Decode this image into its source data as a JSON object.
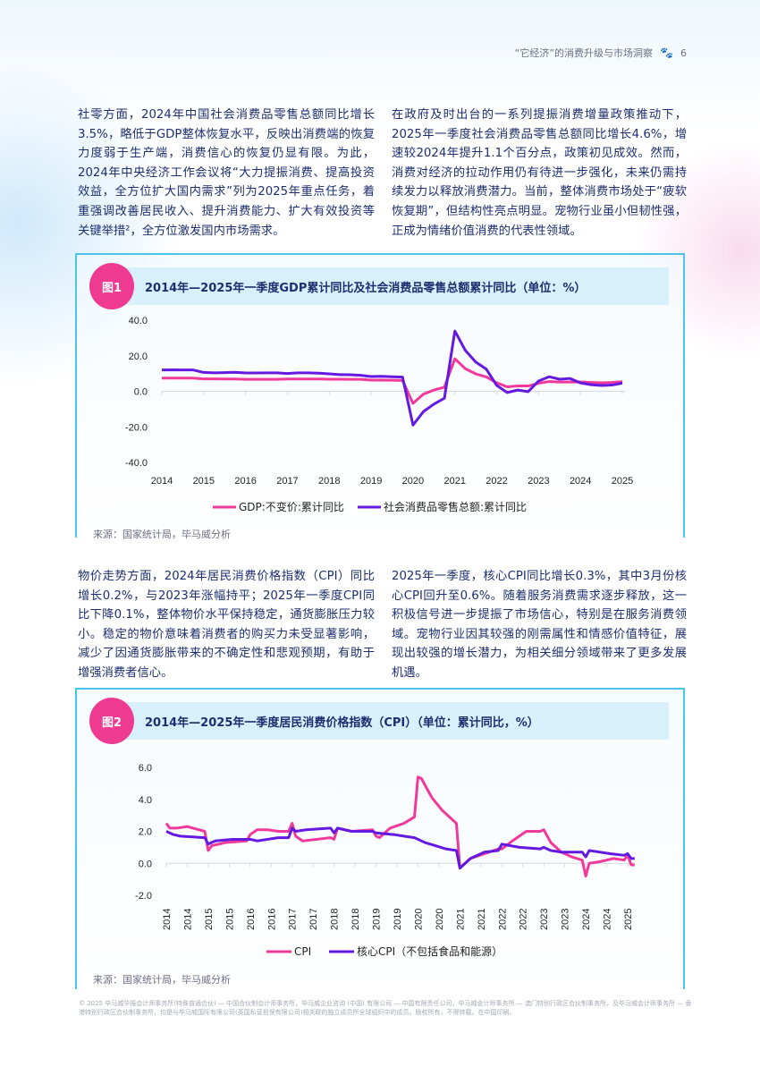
{
  "header": {
    "title": "“它经济”的消费升级与市场洞察",
    "page": "6",
    "icon": "paw-icon"
  },
  "sections": [
    {
      "left": "社零方面，2024年中国社会消费品零售总额同比增长3.5%，略低于GDP整体恢复水平，反映出消费端的恢复力度弱于生产端，消费信心的恢复仍显有限。为此，2024年中央经济工作会议将“大力提振消费、提高投资效益，全方位扩大国内需求”列为2025年重点任务，着重强调改善居民收入、提升消费能力、扩大有效投资等关键举措²，全方位激发国内市场需求。",
      "right": "在政府及时出台的一系列提振消费增量政策推动下，2025年一季度社会消费品零售总额同比增长4.6%，增速较2024年提升1.1个百分点，政策初见成效。然而，消费对经济的拉动作用仍有待进一步强化，未来仍需持续发力以释放消费潜力。当前，整体消费市场处于“疲软恢复期”，但结构性亮点明显。宠物行业虽小但韧性强，正成为情绪价值消费的代表性领域。"
    },
    {
      "left": "物价走势方面，2024年居民消费价格指数（CPI）同比增长0.2%，与2023年涨幅持平；2025年一季度CPI同比下降0.1%，整体物价水平保持稳定，通货膨胀压力较小。稳定的物价意味着消费者的购买力未受显著影响，减少了因通货膨胀带来的不确定性和悲观预期，有助于增强消费者信心。",
      "right": "2025年一季度，核心CPI同比增长0.3%，其中3月份核心CPI回升至0.6%。随着服务消费需求逐步释放，这一积极信号进一步提振了市场信心，特别是在服务消费领域。宠物行业因其较强的刚需属性和情感价值特征，展现出较强的增长潜力，为相关细分领域带来了更多发展机遇。"
    }
  ],
  "figures": [
    {
      "badge": "图1",
      "title": "2014年—2025年一季度GDP累计同比及社会消费品零售总额累计同比（单位：%）",
      "source": "来源：国家统计局，毕马威分析"
    },
    {
      "badge": "图2",
      "title": "2014年—2025年一季度居民消费价格指数（CPI）（单位：累计同比，%）",
      "source": "来源：国家统计局，毕马威分析"
    }
  ],
  "chart_data": [
    {
      "type": "line",
      "xlabel": "",
      "ylabel": "",
      "ylim": [
        -40,
        40
      ],
      "yticks": [
        "40.0",
        "20.0",
        "0.0",
        "-20.0",
        "-40.0"
      ],
      "xticks": [
        "2014",
        "2015",
        "2016",
        "2017",
        "2018",
        "2019",
        "2020",
        "2021",
        "2022",
        "2023",
        "2024",
        "2025"
      ],
      "x": "quarterly 2014Q1–2025Q1",
      "legend": "bottom",
      "series": [
        {
          "name": "GDP:不变价:累计同比",
          "color": "#f0399a",
          "values": [
            7.4,
            7.4,
            7.4,
            7.4,
            7.0,
            7.0,
            6.9,
            6.9,
            6.7,
            6.7,
            6.7,
            6.7,
            6.9,
            6.9,
            6.9,
            6.9,
            6.8,
            6.8,
            6.7,
            6.7,
            6.3,
            6.3,
            6.2,
            6.1,
            -6.8,
            -1.6,
            0.7,
            2.3,
            18.3,
            12.7,
            9.8,
            8.1,
            4.8,
            2.5,
            3.0,
            3.0,
            4.5,
            5.5,
            5.2,
            5.2,
            5.3,
            5.0,
            4.8,
            5.0,
            5.4
          ]
        },
        {
          "name": "社会消费品零售总额:累计同比",
          "color": "#6419e0",
          "values": [
            12.0,
            12.1,
            12.0,
            12.0,
            10.6,
            10.4,
            10.5,
            10.7,
            10.3,
            10.3,
            10.4,
            10.4,
            10.0,
            10.4,
            10.4,
            10.2,
            9.8,
            9.4,
            9.3,
            9.0,
            8.3,
            8.4,
            8.2,
            8.0,
            -19.0,
            -11.4,
            -7.2,
            -3.9,
            33.9,
            23.0,
            16.4,
            12.5,
            3.3,
            -0.7,
            0.7,
            -0.2,
            5.8,
            8.2,
            6.8,
            7.2,
            4.7,
            3.7,
            3.3,
            3.5,
            4.6
          ]
        }
      ]
    },
    {
      "type": "line",
      "xlabel": "",
      "ylabel": "",
      "ylim": [
        -2,
        6
      ],
      "yticks": [
        "6.0",
        "4.0",
        "2.0",
        "0.0",
        "-2.0"
      ],
      "xticks": [
        "2014",
        "2014",
        "2015",
        "2015",
        "2016",
        "2016",
        "2017",
        "2017",
        "2018",
        "2018",
        "2019",
        "2019",
        "2020",
        "2020",
        "2021",
        "2021",
        "2022",
        "2022",
        "2023",
        "2023",
        "2024",
        "2024",
        "2025"
      ],
      "legend": "bottom",
      "series": [
        {
          "name": "CPI",
          "color": "#f0399a",
          "points": [
            [
              "2014-01",
              2.5
            ],
            [
              "2014-02",
              2.2
            ],
            [
              "2014-04",
              2.2
            ],
            [
              "2014-07",
              2.3
            ],
            [
              "2014-12",
              2.0
            ],
            [
              "2015-01",
              0.8
            ],
            [
              "2015-02",
              1.1
            ],
            [
              "2015-06",
              1.3
            ],
            [
              "2015-12",
              1.4
            ],
            [
              "2016-01",
              1.8
            ],
            [
              "2016-03",
              2.1
            ],
            [
              "2016-06",
              2.1
            ],
            [
              "2016-09",
              2.0
            ],
            [
              "2016-12",
              2.0
            ],
            [
              "2017-01",
              2.5
            ],
            [
              "2017-02",
              1.7
            ],
            [
              "2017-04",
              1.4
            ],
            [
              "2017-08",
              1.5
            ],
            [
              "2017-12",
              1.6
            ],
            [
              "2018-01",
              1.5
            ],
            [
              "2018-02",
              2.2
            ],
            [
              "2018-06",
              2.0
            ],
            [
              "2018-12",
              2.1
            ],
            [
              "2019-01",
              1.7
            ],
            [
              "2019-02",
              1.6
            ],
            [
              "2019-05",
              2.2
            ],
            [
              "2019-09",
              2.5
            ],
            [
              "2019-12",
              2.9
            ],
            [
              "2020-01",
              5.4
            ],
            [
              "2020-02",
              5.3
            ],
            [
              "2020-05",
              4.1
            ],
            [
              "2020-08",
              3.3
            ],
            [
              "2020-12",
              2.5
            ],
            [
              "2021-01",
              -0.3
            ],
            [
              "2021-04",
              0.3
            ],
            [
              "2021-08",
              0.6
            ],
            [
              "2021-12",
              0.9
            ],
            [
              "2022-01",
              0.9
            ],
            [
              "2022-04",
              1.4
            ],
            [
              "2022-08",
              2.0
            ],
            [
              "2022-12",
              2.0
            ],
            [
              "2023-01",
              2.1
            ],
            [
              "2023-03",
              1.3
            ],
            [
              "2023-06",
              0.7
            ],
            [
              "2023-09",
              0.4
            ],
            [
              "2023-12",
              0.2
            ],
            [
              "2024-01",
              -0.8
            ],
            [
              "2024-02",
              0.0
            ],
            [
              "2024-05",
              0.1
            ],
            [
              "2024-09",
              0.3
            ],
            [
              "2024-12",
              0.2
            ],
            [
              "2025-01",
              0.5
            ],
            [
              "2025-02",
              -0.1
            ],
            [
              "2025-03",
              -0.1
            ]
          ]
        },
        {
          "name": "核心CPI（不包括食品和能源）",
          "color": "#6419e0",
          "points": [
            [
              "2014-01",
              2.0
            ],
            [
              "2014-03",
              1.8
            ],
            [
              "2014-05",
              1.7
            ],
            [
              "2014-12",
              1.6
            ],
            [
              "2015-01",
              1.2
            ],
            [
              "2015-03",
              1.4
            ],
            [
              "2015-08",
              1.5
            ],
            [
              "2016-01",
              1.5
            ],
            [
              "2016-03",
              1.4
            ],
            [
              "2016-06",
              1.5
            ],
            [
              "2016-09",
              1.6
            ],
            [
              "2016-12",
              1.6
            ],
            [
              "2017-01",
              2.2
            ],
            [
              "2017-02",
              2.0
            ],
            [
              "2017-05",
              2.1
            ],
            [
              "2017-12",
              2.2
            ],
            [
              "2018-01",
              1.9
            ],
            [
              "2018-02",
              2.2
            ],
            [
              "2018-06",
              2.0
            ],
            [
              "2018-12",
              2.0
            ],
            [
              "2019-01",
              1.9
            ],
            [
              "2019-06",
              1.8
            ],
            [
              "2019-09",
              1.7
            ],
            [
              "2019-12",
              1.6
            ],
            [
              "2020-01",
              1.5
            ],
            [
              "2020-03",
              1.3
            ],
            [
              "2020-06",
              1.1
            ],
            [
              "2020-09",
              0.9
            ],
            [
              "2020-12",
              0.8
            ],
            [
              "2021-01",
              -0.3
            ],
            [
              "2021-04",
              0.3
            ],
            [
              "2021-08",
              0.7
            ],
            [
              "2021-12",
              0.8
            ],
            [
              "2022-01",
              1.2
            ],
            [
              "2022-06",
              1.0
            ],
            [
              "2022-12",
              0.9
            ],
            [
              "2023-01",
              1.0
            ],
            [
              "2023-03",
              0.8
            ],
            [
              "2023-06",
              0.7
            ],
            [
              "2023-12",
              0.7
            ],
            [
              "2024-01",
              0.4
            ],
            [
              "2024-02",
              0.8
            ],
            [
              "2024-08",
              0.6
            ],
            [
              "2024-12",
              0.5
            ],
            [
              "2025-01",
              0.6
            ],
            [
              "2025-02",
              0.3
            ],
            [
              "2025-03",
              0.3
            ]
          ]
        }
      ]
    }
  ],
  "footer": "© 2025 毕马威华振会计师事务所(特殊普通合伙) — 中国合伙制会计师事务所，毕马威企业咨询 (中国) 有限公司 — 中国有限责任公司，毕马威会计师事务所 — 澳门特别行政区合伙制事务所，及毕马威会计师事务所 — 香港特别行政区合伙制事务所，均是与毕马威国际有限公司(英国私营担保有限公司)相关联的独立成员所全球组织中的成员。版权所有，不得转载。在中国印刷。"
}
